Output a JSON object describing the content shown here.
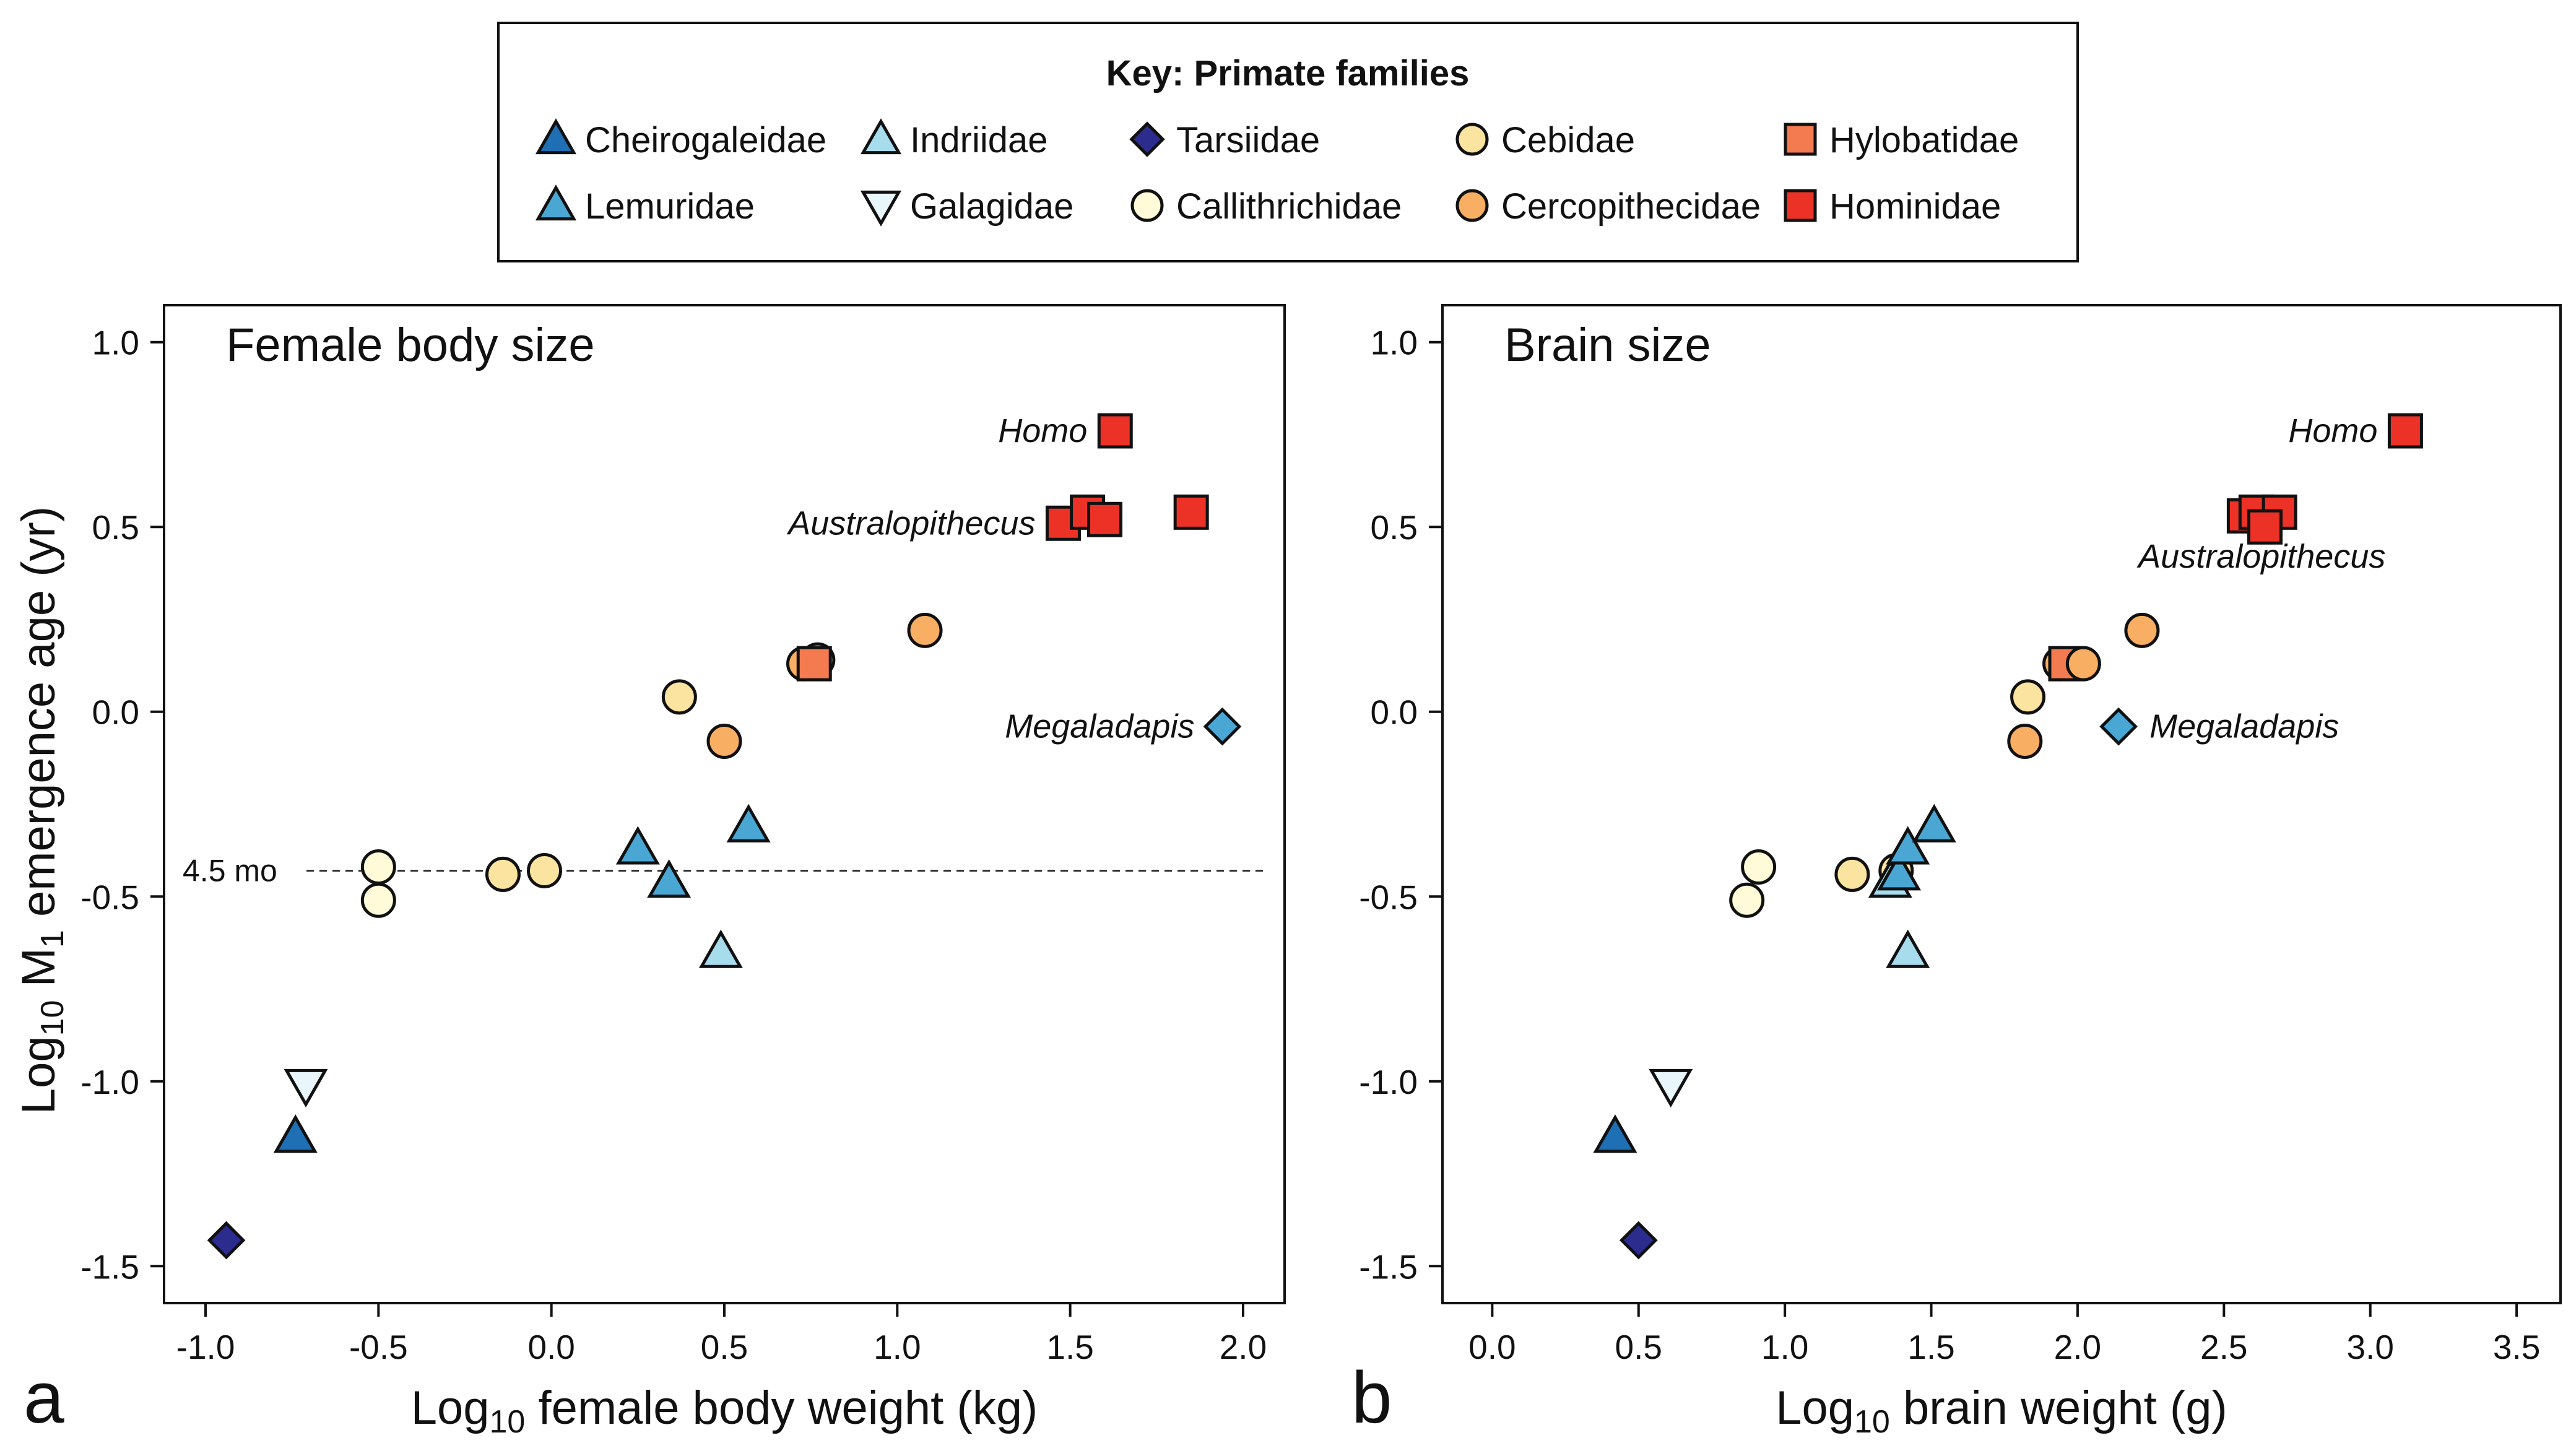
{
  "legend": {
    "heading": "Key:  Primate families",
    "families": [
      {
        "name": "Cheirogaleidae",
        "marker": "triangle-up",
        "color": "#1f6fb4"
      },
      {
        "name": "Indriidae",
        "marker": "triangle-up",
        "color": "#a6dcec"
      },
      {
        "name": "Tarsiidae",
        "marker": "diamond",
        "color": "#2c2c8e"
      },
      {
        "name": "Cebidae",
        "marker": "circle",
        "color": "#fbe3a0"
      },
      {
        "name": "Hylobatidae",
        "marker": "square",
        "color": "#f47a4f"
      },
      {
        "name": "Lemuridae",
        "marker": "triangle-up",
        "color": "#4aa7d4"
      },
      {
        "name": "Galagidae",
        "marker": "triangle-down",
        "color": "#e9f6fb"
      },
      {
        "name": "Callithrichidae",
        "marker": "circle",
        "color": "#fffbd8"
      },
      {
        "name": "Cercopithecidae",
        "marker": "circle",
        "color": "#f8ae63"
      },
      {
        "name": "Hominidae",
        "marker": "square",
        "color": "#ec3226"
      }
    ]
  },
  "chart_data": [
    {
      "type": "scatter",
      "panel_letter": "a",
      "title": "Female body size",
      "xlabel": "Log10 female body weight (kg)",
      "xlabel_main": "Log",
      "xlabel_sub": "10",
      "xlabel_rest": " female body weight (kg)",
      "ylabel": "Log10 M1 emergence age (yr)",
      "ylabel_main": "Log",
      "ylabel_sub": "10",
      "ylabel_mid": " M",
      "ylabel_sub2": "1",
      "ylabel_rest": " emergence age (yr)",
      "xlim": [
        -1.12,
        2.12
      ],
      "ylim": [
        -1.6,
        1.1
      ],
      "xticks": [
        -1.0,
        -0.5,
        0.0,
        0.5,
        1.0,
        1.5,
        2.0
      ],
      "xtick_labels": [
        "-1.0",
        "-0.5",
        "0.0",
        "0.5",
        "1.0",
        "1.5",
        "2.0"
      ],
      "yticks": [
        1.0,
        0.5,
        0.0,
        -0.5,
        -1.0,
        -1.5
      ],
      "ytick_labels": [
        "1.0",
        "0.5",
        "0.0",
        "-0.5",
        "-1.0",
        "-1.5"
      ],
      "reference_line": {
        "y": -0.43,
        "label": "4.5 mo"
      },
      "annotations": [
        {
          "text": "Homo",
          "x": 1.63,
          "y": 0.76,
          "anchor": "right"
        },
        {
          "text": "Australopithecus",
          "x": 1.48,
          "y": 0.51,
          "anchor": "right"
        },
        {
          "text": "Megaladapis",
          "x": 1.94,
          "y": -0.04,
          "anchor": "right"
        }
      ],
      "points": [
        {
          "family": "Tarsiidae",
          "x": -0.94,
          "y": -1.43
        },
        {
          "family": "Cheirogaleidae",
          "x": -0.74,
          "y": -1.15
        },
        {
          "family": "Galagidae",
          "x": -0.71,
          "y": -1.01
        },
        {
          "family": "Callithrichidae",
          "x": -0.5,
          "y": -0.42
        },
        {
          "family": "Callithrichidae",
          "x": -0.5,
          "y": -0.51
        },
        {
          "family": "Cebidae",
          "x": -0.14,
          "y": -0.44
        },
        {
          "family": "Cebidae",
          "x": -0.02,
          "y": -0.43
        },
        {
          "family": "Lemuridae",
          "x": 0.25,
          "y": -0.37
        },
        {
          "family": "Lemuridae",
          "x": 0.34,
          "y": -0.46
        },
        {
          "family": "Indriidae",
          "x": 0.49,
          "y": -0.65
        },
        {
          "family": "Lemuridae",
          "x": 0.57,
          "y": -0.31
        },
        {
          "family": "Cebidae",
          "x": 0.37,
          "y": 0.04
        },
        {
          "family": "Cercopithecidae",
          "x": 0.5,
          "y": -0.08
        },
        {
          "family": "Cercopithecidae",
          "x": 0.73,
          "y": 0.13
        },
        {
          "family": "Cebidae",
          "x": 0.77,
          "y": 0.14
        },
        {
          "family": "Hylobatidae",
          "x": 0.76,
          "y": 0.13
        },
        {
          "family": "Cercopithecidae",
          "x": 1.08,
          "y": 0.22
        },
        {
          "family": "Hominidae",
          "x": 1.48,
          "y": 0.51
        },
        {
          "family": "Hominidae",
          "x": 1.55,
          "y": 0.54
        },
        {
          "family": "Hominidae",
          "x": 1.6,
          "y": 0.52
        },
        {
          "family": "Hominidae",
          "x": 1.85,
          "y": 0.54
        },
        {
          "family": "Hominidae",
          "x": 1.63,
          "y": 0.76
        },
        {
          "family": "Lemuridae",
          "x": 1.94,
          "y": -0.04,
          "marker": "diamond"
        }
      ]
    },
    {
      "type": "scatter",
      "panel_letter": "b",
      "title": "Brain size",
      "xlabel": "Log10 brain weight (g)",
      "xlabel_main": "Log",
      "xlabel_sub": "10",
      "xlabel_rest": " brain weight (g)",
      "ylabel": "",
      "xlim": [
        -0.17,
        3.65
      ],
      "ylim": [
        -1.6,
        1.1
      ],
      "xticks": [
        0.0,
        0.5,
        1.0,
        1.5,
        2.0,
        2.5,
        3.0,
        3.5
      ],
      "xtick_labels": [
        "0.0",
        "0.5",
        "1.0",
        "1.5",
        "2.0",
        "2.5",
        "3.0",
        "3.5"
      ],
      "yticks": [
        1.0,
        0.5,
        0.0,
        -0.5,
        -1.0,
        -1.5
      ],
      "ytick_labels": [
        "1.0",
        "0.5",
        "0.0",
        "-0.5",
        "-1.0",
        "-1.5"
      ],
      "annotations": [
        {
          "text": "Homo",
          "x": 3.12,
          "y": 0.76,
          "anchor": "right"
        },
        {
          "text": "Australopithecus",
          "x": 2.63,
          "y": 0.42,
          "anchor": "middle"
        },
        {
          "text": "Megaladapis",
          "x": 2.14,
          "y": -0.04,
          "anchor": "left"
        }
      ],
      "points": [
        {
          "family": "Cheirogaleidae",
          "x": 0.42,
          "y": -1.15
        },
        {
          "family": "Tarsiidae",
          "x": 0.5,
          "y": -1.43
        },
        {
          "family": "Galagidae",
          "x": 0.61,
          "y": -1.01
        },
        {
          "family": "Callithrichidae",
          "x": 0.87,
          "y": -0.51
        },
        {
          "family": "Callithrichidae",
          "x": 0.91,
          "y": -0.42
        },
        {
          "family": "Cebidae",
          "x": 1.23,
          "y": -0.44
        },
        {
          "family": "Cebidae",
          "x": 1.38,
          "y": -0.43
        },
        {
          "family": "Indriidae",
          "x": 1.36,
          "y": -0.46
        },
        {
          "family": "Lemuridae",
          "x": 1.39,
          "y": -0.44
        },
        {
          "family": "Lemuridae",
          "x": 1.42,
          "y": -0.37
        },
        {
          "family": "Indriidae",
          "x": 1.42,
          "y": -0.65
        },
        {
          "family": "Lemuridae",
          "x": 1.51,
          "y": -0.31
        },
        {
          "family": "Cebidae",
          "x": 1.83,
          "y": 0.04
        },
        {
          "family": "Cercopithecidae",
          "x": 1.82,
          "y": -0.08
        },
        {
          "family": "Cercopithecidae",
          "x": 1.94,
          "y": 0.13
        },
        {
          "family": "Hylobatidae",
          "x": 1.96,
          "y": 0.13
        },
        {
          "family": "Cercopithecidae",
          "x": 2.02,
          "y": 0.13
        },
        {
          "family": "Cercopithecidae",
          "x": 2.22,
          "y": 0.22
        },
        {
          "family": "Lemuridae",
          "x": 2.14,
          "y": -0.04,
          "marker": "diamond"
        },
        {
          "family": "Hominidae",
          "x": 2.57,
          "y": 0.53
        },
        {
          "family": "Hominidae",
          "x": 2.61,
          "y": 0.54
        },
        {
          "family": "Hominidae",
          "x": 2.69,
          "y": 0.54
        },
        {
          "family": "Hominidae",
          "x": 2.64,
          "y": 0.5
        },
        {
          "family": "Hominidae",
          "x": 3.12,
          "y": 0.76
        }
      ]
    }
  ]
}
